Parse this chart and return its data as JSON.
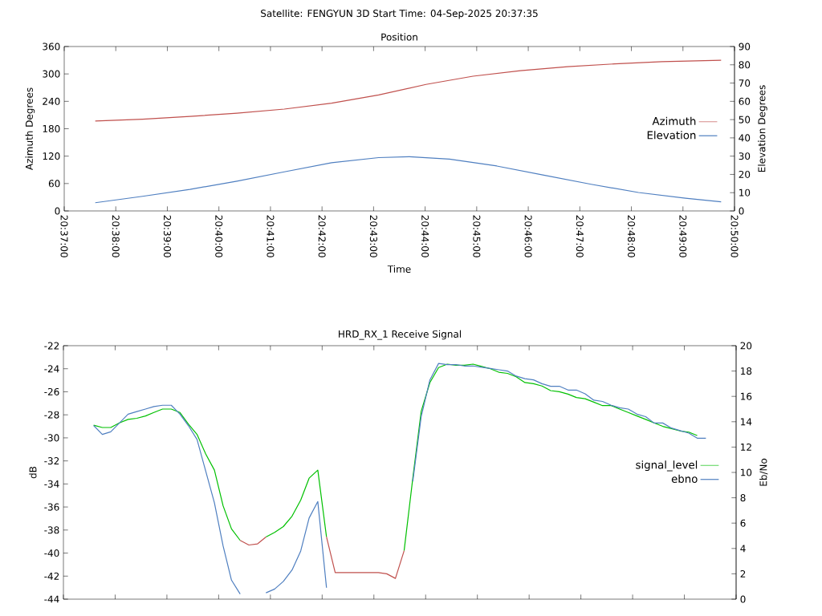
{
  "chart_data": [
    {
      "type": "line",
      "title": "Satellite: FENGYUN 3D    Start Time: 04-Sep-2025 20:37:35",
      "subtitle": "Position",
      "xlabel": "Time",
      "ylabel": "Azimuth Degrees",
      "y2label": "Elevation Degrees",
      "xlim": [
        20.616667,
        20.833333
      ],
      "xticks": [
        {
          "value": 20.616667,
          "label": "20:37:00"
        },
        {
          "value": 20.633333,
          "label": "20:38:00"
        },
        {
          "value": 20.65,
          "label": "20:39:00"
        },
        {
          "value": 20.666667,
          "label": "20:40:00"
        },
        {
          "value": 20.683333,
          "label": "20:41:00"
        },
        {
          "value": 20.7,
          "label": "20:42:00"
        },
        {
          "value": 20.716667,
          "label": "20:43:00"
        },
        {
          "value": 20.733333,
          "label": "20:44:00"
        },
        {
          "value": 20.75,
          "label": "20:45:00"
        },
        {
          "value": 20.766667,
          "label": "20:46:00"
        },
        {
          "value": 20.783333,
          "label": "20:47:00"
        },
        {
          "value": 20.8,
          "label": "20:48:00"
        },
        {
          "value": 20.816667,
          "label": "20:49:00"
        },
        {
          "value": 20.833333,
          "label": "20:50:00"
        }
      ],
      "ylim": [
        0,
        360
      ],
      "yticks": [
        0,
        60,
        120,
        180,
        240,
        300,
        360
      ],
      "y2lim": [
        0,
        90
      ],
      "y2ticks": [
        0,
        10,
        20,
        30,
        40,
        50,
        60,
        70,
        80,
        90
      ],
      "legend": "right",
      "marker": "none",
      "line_style": "solid",
      "series": [
        {
          "name": "Azimuth",
          "color": "#c0504d",
          "x": [
            20.6267,
            20.642,
            20.6573,
            20.6725,
            20.6878,
            20.7031,
            20.7183,
            20.7336,
            20.7488,
            20.7641,
            20.7794,
            20.7946,
            20.8099,
            20.829
          ],
          "values": [
            197,
            201,
            207,
            214,
            223,
            236,
            254,
            277,
            295,
            307,
            316,
            322,
            327,
            330
          ]
        },
        {
          "name": "Elevation",
          "color": "#4f7fc0",
          "axis": "y2",
          "x": [
            20.6267,
            20.642,
            20.6573,
            20.6725,
            20.6878,
            20.7031,
            20.7183,
            20.7282,
            20.7412,
            20.7565,
            20.7717,
            20.787,
            20.8023,
            20.8175,
            20.829
          ],
          "values": [
            4.5,
            8,
            11.8,
            16.3,
            21.4,
            26.4,
            29.2,
            29.7,
            28.4,
            24.6,
            19.6,
            14.6,
            10.1,
            7,
            5
          ]
        }
      ]
    },
    {
      "type": "line",
      "title": "HRD_RX_1 Receive Signal",
      "ylabel": "dB",
      "y2label": "Eb/No",
      "xlim": [
        20.616667,
        20.833333
      ],
      "xticks": [
        {
          "value": 20.616667,
          "label": null
        },
        {
          "value": 20.633333,
          "label": null
        },
        {
          "value": 20.65,
          "label": null
        },
        {
          "value": 20.666667,
          "label": null
        },
        {
          "value": 20.683333,
          "label": null
        },
        {
          "value": 20.7,
          "label": null
        },
        {
          "value": 20.716667,
          "label": null
        },
        {
          "value": 20.733333,
          "label": null
        },
        {
          "value": 20.75,
          "label": null
        },
        {
          "value": 20.766667,
          "label": null
        },
        {
          "value": 20.783333,
          "label": null
        },
        {
          "value": 20.8,
          "label": null
        },
        {
          "value": 20.816667,
          "label": null
        },
        {
          "value": 20.833333,
          "label": null
        }
      ],
      "tick_labels": "y",
      "ylim": [
        -44,
        -22
      ],
      "yticks": [
        -44,
        -42,
        -40,
        -38,
        -36,
        -34,
        -32,
        -30,
        -28,
        -26,
        -24,
        -22
      ],
      "y2lim": [
        0,
        20
      ],
      "y2ticks": [
        0,
        2,
        4,
        6,
        8,
        10,
        12,
        14,
        16,
        18,
        20
      ],
      "legend": "right",
      "marker": "none",
      "line_style": "solid",
      "series": [
        {
          "name": "signal_level",
          "color": "#00c000",
          "x": [
            20.6264,
            20.6292,
            20.6319,
            20.6347,
            20.6375,
            20.6403,
            20.6431,
            20.6458,
            20.6486,
            20.6514,
            20.6542,
            20.6569,
            20.6597,
            20.6625,
            20.6653,
            20.6681,
            20.6708,
            20.6736
          ],
          "values": [
            -28.9,
            -29.1,
            -29.1,
            -28.7,
            -28.4,
            -28.3,
            -28.1,
            -27.8,
            -27.5,
            -27.5,
            -27.8,
            -28.8,
            -29.7,
            -31.4,
            -32.8,
            -35.9,
            -37.9,
            -38.9
          ]
        },
        {
          "color": "#00c000",
          "x": [
            20.6819,
            20.6847,
            20.6875,
            20.6903,
            20.6931,
            20.6958,
            20.6986,
            20.7014
          ],
          "values": [
            -38.6,
            -38.2,
            -37.7,
            -36.8,
            -35.4,
            -33.5,
            -32.8,
            -38.6
          ]
        },
        {
          "color": "#00c000",
          "x": [
            20.7264,
            20.7292,
            20.7319,
            20.7347,
            20.7375,
            20.7403,
            20.7431,
            20.7458,
            20.7486,
            20.7514,
            20.7542,
            20.7569,
            20.7597,
            20.7625,
            20.7653,
            20.7681,
            20.7708,
            20.7736,
            20.7764,
            20.7792,
            20.7819,
            20.7847,
            20.7875,
            20.7903,
            20.7931,
            20.7958,
            20.7986,
            20.8014,
            20.8042,
            20.8069,
            20.8097,
            20.8125,
            20.8153,
            20.8181,
            20.8208
          ],
          "values": [
            -39.8,
            -33.5,
            -27.7,
            -25.2,
            -23.9,
            -23.6,
            -23.7,
            -23.7,
            -23.6,
            -23.8,
            -24.0,
            -24.3,
            -24.4,
            -24.7,
            -25.2,
            -25.3,
            -25.5,
            -25.9,
            -26.0,
            -26.2,
            -26.5,
            -26.6,
            -26.9,
            -27.2,
            -27.2,
            -27.5,
            -27.8,
            -28.1,
            -28.4,
            -28.7,
            -29.0,
            -29.2,
            -29.4,
            -29.5,
            -29.8
          ]
        },
        {
          "color": "#c0504d",
          "x": [
            20.6736,
            20.6764,
            20.6792,
            20.6819
          ],
          "values": [
            -38.9,
            -39.3,
            -39.2,
            -38.6
          ]
        },
        {
          "color": "#c0504d",
          "x": [
            20.7014,
            20.7042,
            20.7069,
            20.7097,
            20.7125,
            20.7153,
            20.7181,
            20.7208,
            20.7236,
            20.7264
          ],
          "values": [
            -38.6,
            -41.7,
            -41.7,
            -41.7,
            -41.7,
            -41.7,
            -41.7,
            -41.8,
            -42.2,
            -39.8
          ]
        },
        {
          "name": "ebno",
          "color": "#4f7fc0",
          "axis": "y2",
          "x": [
            20.6264,
            20.6292,
            20.6319,
            20.6347,
            20.6375,
            20.6403,
            20.6431,
            20.6458,
            20.6486,
            20.6514,
            20.6542,
            20.6569,
            20.6597,
            20.6625,
            20.6653,
            20.6681,
            20.6708,
            20.6736
          ],
          "values": [
            13.7,
            13.0,
            13.2,
            13.9,
            14.6,
            14.8,
            15.0,
            15.2,
            15.3,
            15.3,
            14.6,
            13.7,
            12.6,
            10.1,
            7.6,
            4.2,
            1.5,
            0.4
          ]
        },
        {
          "color": "#4f7fc0",
          "axis": "y2",
          "x": [
            20.6819,
            20.6847,
            20.6875,
            20.6903,
            20.6931,
            20.6958,
            20.6986,
            20.7014
          ],
          "values": [
            0.5,
            0.8,
            1.4,
            2.3,
            3.8,
            6.4,
            7.7,
            0.9
          ]
        },
        {
          "color": "#4f7fc0",
          "axis": "y2",
          "x": [
            20.7292,
            20.7319,
            20.7347,
            20.7375,
            20.7403,
            20.7431,
            20.7458,
            20.7486,
            20.7514,
            20.7542,
            20.7569,
            20.7597,
            20.7625,
            20.7653,
            20.7681,
            20.7708,
            20.7736,
            20.7764,
            20.7792,
            20.7819,
            20.7847,
            20.7875,
            20.7903,
            20.7931,
            20.7958,
            20.7986,
            20.8014,
            20.8042,
            20.8069,
            20.8097,
            20.8125,
            20.8153,
            20.8181,
            20.8208,
            20.8236
          ],
          "values": [
            9.3,
            14.4,
            17.3,
            18.6,
            18.5,
            18.5,
            18.4,
            18.4,
            18.3,
            18.2,
            18.1,
            18.0,
            17.6,
            17.4,
            17.3,
            17.0,
            16.8,
            16.8,
            16.5,
            16.5,
            16.2,
            15.7,
            15.6,
            15.3,
            15.1,
            15.0,
            14.6,
            14.4,
            13.9,
            13.9,
            13.5,
            13.3,
            13.1,
            12.7,
            12.7
          ]
        }
      ]
    }
  ]
}
